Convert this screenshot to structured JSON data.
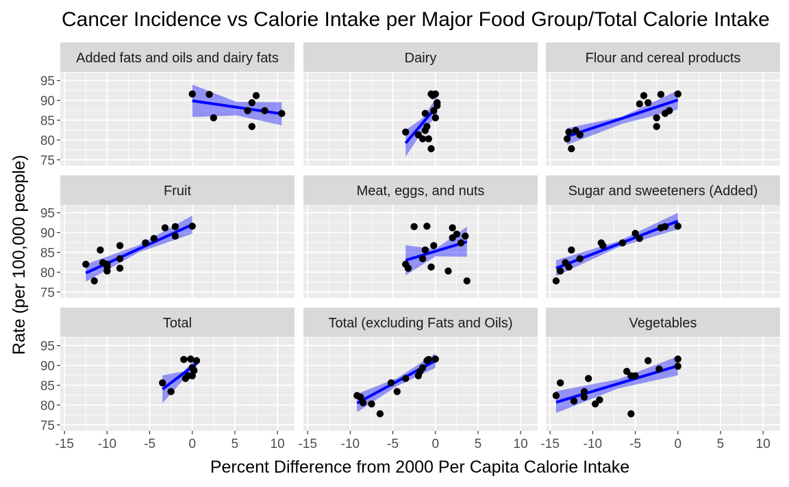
{
  "chart_data": {
    "type": "scatter",
    "title": "Cancer Incidence vs Calorie Intake per Major Food Group/Total Calorie Intake",
    "xlabel": "Percent Difference from 2000 Per Capita Calorie Intake",
    "ylabel": "Rate (per 100,000 people)",
    "xlim": [
      -15.5,
      12
    ],
    "ylim": [
      73.5,
      97
    ],
    "x_ticks": [
      -15,
      -10,
      -5,
      0,
      5,
      10
    ],
    "x_tick_labels": [
      "-15",
      "-10",
      "-5",
      "0",
      "5",
      "10"
    ],
    "y_ticks": [
      75,
      80,
      85,
      90,
      95
    ],
    "y_tick_labels": [
      "75",
      "80",
      "85",
      "90",
      "95"
    ],
    "grid": true,
    "colors": {
      "point": "#000000",
      "fit_line": "#0000ff",
      "band": "#0000ff",
      "panel_bg": "#ebebeb",
      "strip_bg": "#d9d9d9",
      "grid": "#ffffff"
    },
    "facets": [
      {
        "label": "Added fats and oils and dairy fats",
        "x": [
          0,
          2,
          2.5,
          6.5,
          7,
          7,
          7.5,
          8.5,
          10.5
        ],
        "y": [
          91.6,
          91.5,
          85.6,
          87.4,
          89.4,
          83.4,
          91.2,
          87.4,
          86.7
        ],
        "fit": [
          [
            0,
            89.9
          ],
          [
            10.5,
            86.6
          ]
        ],
        "band_upper": [
          [
            0,
            94.0
          ],
          [
            5.2,
            89.6
          ],
          [
            10.5,
            89.5
          ]
        ],
        "band_lower": [
          [
            0,
            85.8
          ],
          [
            5.2,
            86.2
          ],
          [
            10.5,
            83.7
          ]
        ]
      },
      {
        "label": "Dairy",
        "x": [
          -3.5,
          -2,
          -1.5,
          -1.2,
          -1.2,
          -1,
          -0.8,
          -0.5,
          -0.5,
          -0.3,
          -0.2,
          0,
          0,
          0.2,
          0.2
        ],
        "y": [
          82.0,
          81.3,
          80.3,
          82.4,
          86.7,
          83.4,
          80.3,
          77.8,
          91.6,
          91.2,
          87.4,
          91.6,
          85.6,
          89.4,
          88.7
        ],
        "fit": [
          [
            -3.5,
            79.2
          ],
          [
            0.2,
            88.6
          ]
        ],
        "band_upper": [
          [
            -3.5,
            82.5
          ],
          [
            -1.5,
            85.5
          ],
          [
            0.2,
            91.0
          ]
        ],
        "band_lower": [
          [
            -3.5,
            75.8
          ],
          [
            -1.5,
            82.2
          ],
          [
            0.2,
            86.2
          ]
        ]
      },
      {
        "label": "Flour and cereal products",
        "x": [
          -13,
          -12.8,
          -12.5,
          -12,
          -11.5,
          -4.5,
          -4,
          -3.5,
          -2.5,
          -2.5,
          -2,
          -1.5,
          -1,
          0
        ],
        "y": [
          80.3,
          82.0,
          77.8,
          82.4,
          81.3,
          89.1,
          91.2,
          89.4,
          85.6,
          83.4,
          91.5,
          86.7,
          87.4,
          91.6
        ],
        "fit": [
          [
            -13,
            80.9
          ],
          [
            0,
            90.1
          ]
        ],
        "band_upper": [
          [
            -13,
            83.0
          ],
          [
            -6.5,
            85.9
          ],
          [
            0,
            92.5
          ]
        ],
        "band_lower": [
          [
            -13,
            78.8
          ],
          [
            -6.5,
            84.1
          ],
          [
            0,
            87.7
          ]
        ]
      },
      {
        "label": "Fruit",
        "x": [
          -12.5,
          -11.5,
          -10.8,
          -10.5,
          -10,
          -10,
          -10,
          -8.5,
          -8.5,
          -8.5,
          -5.5,
          -4.5,
          -3.2,
          -2,
          -2,
          0
        ],
        "y": [
          82.0,
          77.8,
          85.6,
          82.4,
          81.3,
          80.3,
          82.0,
          86.7,
          83.4,
          81.0,
          87.4,
          88.5,
          91.2,
          91.5,
          89.1,
          91.6
        ],
        "fit": [
          [
            -12.5,
            79.8
          ],
          [
            0,
            92.0
          ]
        ],
        "band_upper": [
          [
            -12.5,
            82.0
          ],
          [
            -6.3,
            86.8
          ],
          [
            0,
            94.3
          ]
        ],
        "band_lower": [
          [
            -12.5,
            77.6
          ],
          [
            -6.3,
            85.0
          ],
          [
            0,
            89.7
          ]
        ]
      },
      {
        "label": "Meat, eggs, and nuts",
        "x": [
          -3.5,
          -3.2,
          -2.5,
          -1.5,
          -1.2,
          -1,
          -0.5,
          -0.2,
          1.5,
          2,
          2,
          2.5,
          3,
          3.5,
          3.7
        ],
        "y": [
          82.0,
          81.0,
          91.5,
          83.4,
          85.6,
          91.6,
          81.3,
          86.7,
          80.3,
          91.2,
          88.7,
          89.6,
          87.4,
          89.1,
          77.8
        ],
        "fit": [
          [
            -3.5,
            83.0
          ],
          [
            3.7,
            87.7
          ]
        ],
        "band_upper": [
          [
            -3.5,
            86.8
          ],
          [
            0,
            85.8
          ],
          [
            3.7,
            91.5
          ]
        ],
        "band_lower": [
          [
            -3.5,
            79.2
          ],
          [
            0,
            84.0
          ],
          [
            3.7,
            83.9
          ]
        ]
      },
      {
        "label": "Sugar and sweeteners (Added)",
        "x": [
          -14.3,
          -13.8,
          -13.2,
          -12.8,
          -12.5,
          -11.5,
          -9,
          -8.8,
          -6.5,
          -5,
          -4.5,
          -2,
          -1.5,
          0
        ],
        "y": [
          77.8,
          80.3,
          82.4,
          81.3,
          85.6,
          83.4,
          87.4,
          86.7,
          87.4,
          89.8,
          88.5,
          91.2,
          91.5,
          91.6
        ],
        "fit": [
          [
            -14.3,
            81.0
          ],
          [
            0,
            92.9
          ]
        ],
        "band_upper": [
          [
            -14.3,
            83.0
          ],
          [
            -7,
            87.8
          ],
          [
            0,
            95.0
          ]
        ],
        "band_lower": [
          [
            -14.3,
            79.0
          ],
          [
            -7,
            86.3
          ],
          [
            0,
            90.8
          ]
        ]
      },
      {
        "label": "Total",
        "x": [
          -3.5,
          -2.5,
          -1,
          -0.8,
          -0.5,
          -0.2,
          0,
          0,
          0.2,
          0.5
        ],
        "y": [
          85.6,
          83.4,
          91.5,
          86.7,
          87.4,
          91.6,
          89.4,
          87.4,
          88.7,
          91.2
        ],
        "fit": [
          [
            -3.5,
            84.0
          ],
          [
            0.5,
            90.5
          ]
        ],
        "band_upper": [
          [
            -3.5,
            87.5
          ],
          [
            -1,
            88.5
          ],
          [
            0.5,
            92.2
          ]
        ],
        "band_lower": [
          [
            -3.5,
            80.5
          ],
          [
            -1,
            86.5
          ],
          [
            0.5,
            88.8
          ]
        ]
      },
      {
        "label": "Total (excluding Fats and Oils)",
        "x": [
          -9.2,
          -8.8,
          -8.5,
          -7.5,
          -6.5,
          -5.2,
          -4.5,
          -3.5,
          -2,
          -1.8,
          -1.5,
          -1,
          -0.8,
          0
        ],
        "y": [
          82.4,
          82.0,
          80.6,
          80.3,
          77.8,
          85.6,
          83.4,
          86.7,
          87.4,
          88.5,
          89.4,
          91.2,
          91.5,
          91.6
        ],
        "fit": [
          [
            -9.2,
            80.5
          ],
          [
            0,
            91.2
          ]
        ],
        "band_upper": [
          [
            -9.2,
            82.8
          ],
          [
            -4.5,
            86.8
          ],
          [
            0,
            93.0
          ]
        ],
        "band_lower": [
          [
            -9.2,
            78.2
          ],
          [
            -4.5,
            84.8
          ],
          [
            0,
            89.4
          ]
        ]
      },
      {
        "label": "Vegetables",
        "x": [
          -14.3,
          -13.8,
          -12.2,
          -11,
          -11,
          -10.5,
          -9.7,
          -9.2,
          -6,
          -5.5,
          -5.5,
          -5,
          -3.5,
          -2.2,
          0,
          0
        ],
        "y": [
          82.4,
          85.6,
          81.0,
          83.4,
          82.0,
          86.7,
          80.3,
          81.3,
          88.5,
          87.4,
          77.8,
          87.4,
          91.2,
          89.1,
          91.6,
          89.8
        ],
        "fit": [
          [
            -14.3,
            80.7
          ],
          [
            0,
            89.9
          ]
        ],
        "band_upper": [
          [
            -14.3,
            83.5
          ],
          [
            -7,
            86.5
          ],
          [
            0,
            92.3
          ]
        ],
        "band_lower": [
          [
            -14.3,
            78.0
          ],
          [
            -7,
            84.2
          ],
          [
            0,
            87.5
          ]
        ]
      }
    ]
  }
}
